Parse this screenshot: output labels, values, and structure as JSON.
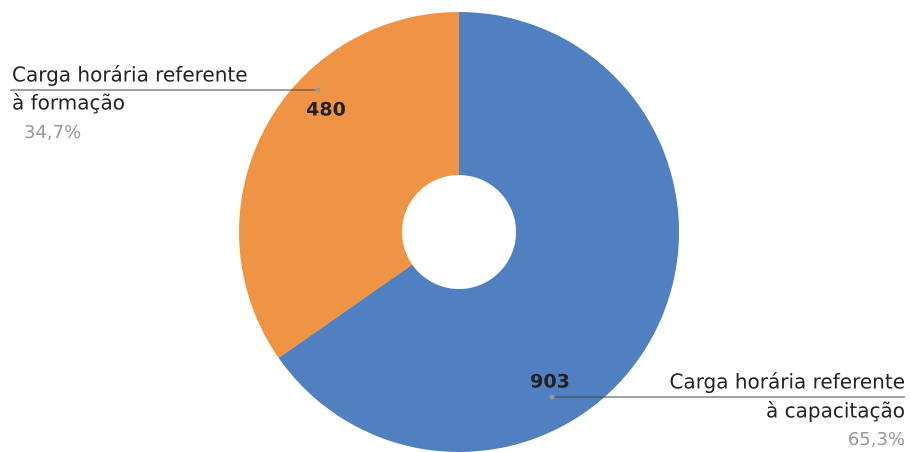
{
  "chart_data": {
    "type": "donut",
    "categories": [
      [
        "Carga horária referente",
        "à capacitação"
      ],
      [
        "Carga horária referente",
        "à formação"
      ]
    ],
    "values": [
      903,
      480
    ],
    "percentages": [
      65.3,
      34.7
    ],
    "percentage_labels": [
      "65,3%",
      "34,7%"
    ],
    "colors": [
      "#5080c0",
      "#ef9444"
    ]
  }
}
